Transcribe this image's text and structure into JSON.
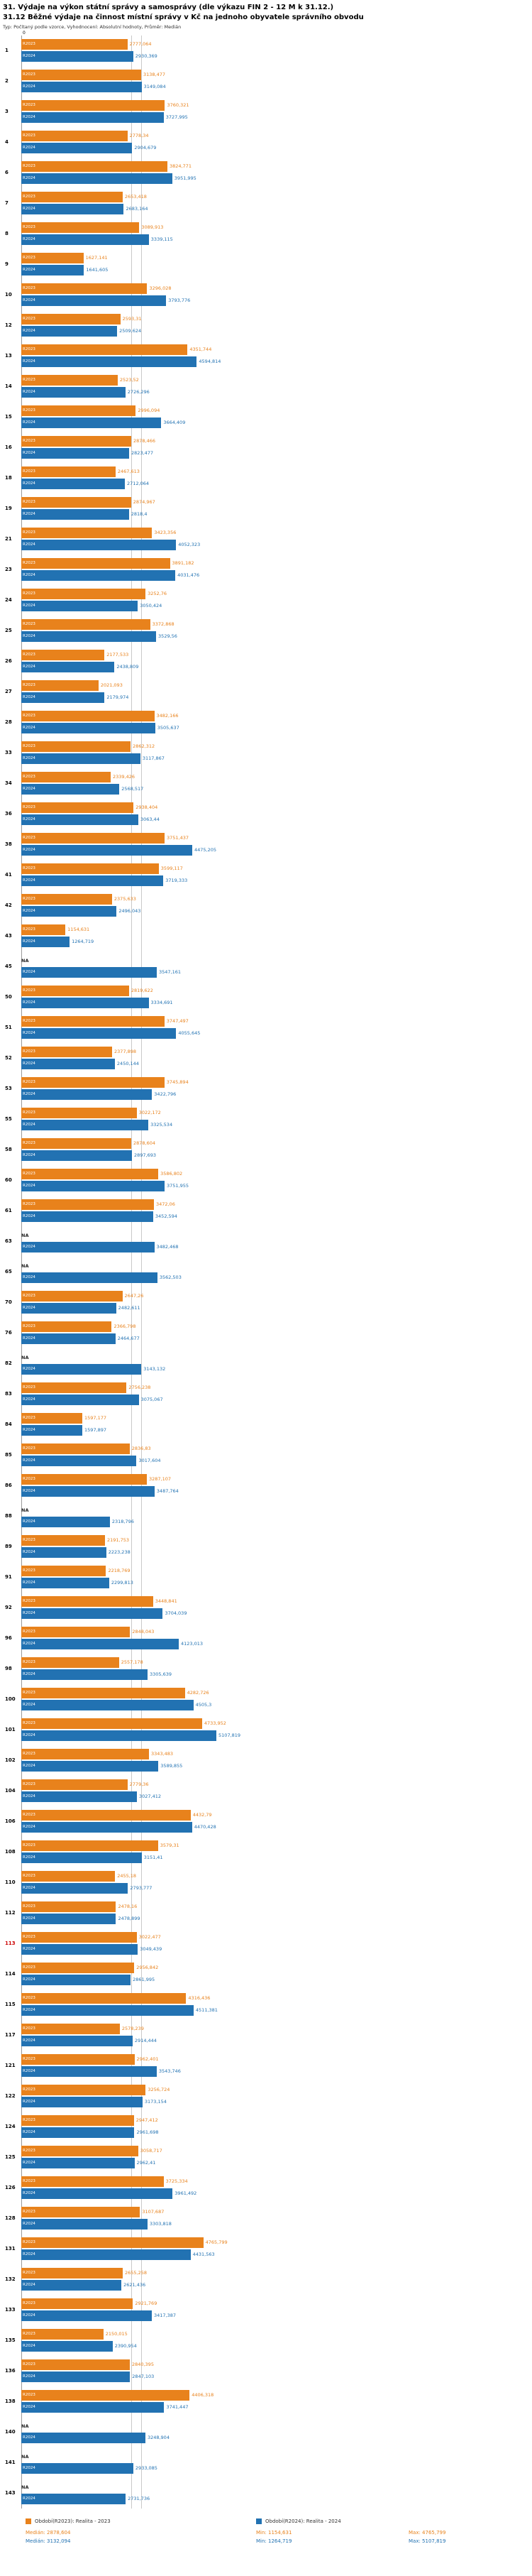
{
  "header": {
    "title": "31. Výdaje na výkon státní správy a samosprávy (dle výkazu FIN 2 - 12 M k 31.12.)",
    "subtitle": "31.12 Běžné výdaje na činnost místní správy v Kč na jednoho obyvatele správního obvodu",
    "meta": "Typ: Počítaný podle vzorce, Vyhodnocení: Absolutní hodnoty, Průměr: Medián",
    "axis_zero": "0"
  },
  "series": {
    "s2023": {
      "label": "R2023",
      "color": "#e8821c",
      "legend": "Období(R2023): Realita - 2023"
    },
    "s2024": {
      "label": "R2024",
      "color": "#2272b2",
      "legend": "Období(R2024): Realita - 2024"
    }
  },
  "na_label": "NA",
  "highlight_row": "113",
  "colors": {
    "s2023": "#e8821c",
    "s2024": "#2272b2",
    "highlight": "#cc0000",
    "gridline": "#c9c9c9"
  },
  "footer": {
    "median_2023": "Medián: 2878,604",
    "median_2024": "Medián: 3132,094",
    "min_2023": "Min: 1154,631",
    "min_2024": "Min: 1264,719",
    "max_2023": "Max: 4765,799",
    "max_2024": "Max: 5107,819"
  },
  "rows": [
    {
      "id": "1",
      "r2023": "2777,064",
      "r2024": "2930,369"
    },
    {
      "id": "2",
      "r2023": "3138,477",
      "r2024": "3149,084"
    },
    {
      "id": "3",
      "r2023": "3760,321",
      "r2024": "3727,995"
    },
    {
      "id": "4",
      "r2023": "2778,34",
      "r2024": "2904,679"
    },
    {
      "id": "6",
      "r2023": "3824,771",
      "r2024": "3951,995"
    },
    {
      "id": "7",
      "r2023": "2653,418",
      "r2024": "2683,164"
    },
    {
      "id": "8",
      "r2023": "3089,913",
      "r2024": "3339,115"
    },
    {
      "id": "9",
      "r2023": "1627,141",
      "r2024": "1641,605"
    },
    {
      "id": "10",
      "r2023": "3296,028",
      "r2024": "3793,776"
    },
    {
      "id": "12",
      "r2023": "2593,31",
      "r2024": "2509,624"
    },
    {
      "id": "13",
      "r2023": "4351,744",
      "r2024": "4594,814"
    },
    {
      "id": "14",
      "r2023": "2523,52",
      "r2024": "2726,296"
    },
    {
      "id": "15",
      "r2023": "2996,094",
      "r2024": "3664,409"
    },
    {
      "id": "16",
      "r2023": "2878,466",
      "r2024": "2823,477"
    },
    {
      "id": "18",
      "r2023": "2467,613",
      "r2024": "2712,064"
    },
    {
      "id": "19",
      "r2023": "2874,967",
      "r2024": "2818,4"
    },
    {
      "id": "21",
      "r2023": "3423,356",
      "r2024": "4052,323"
    },
    {
      "id": "23",
      "r2023": "3891,182",
      "r2024": "4031,476"
    },
    {
      "id": "24",
      "r2023": "3252,76",
      "r2024": "3050,424"
    },
    {
      "id": "25",
      "r2023": "3372,868",
      "r2024": "3529,56"
    },
    {
      "id": "26",
      "r2023": "2177,533",
      "r2024": "2438,809"
    },
    {
      "id": "27",
      "r2023": "2021,093",
      "r2024": "2179,974"
    },
    {
      "id": "28",
      "r2023": "3482,166",
      "r2024": "3505,637"
    },
    {
      "id": "33",
      "r2023": "2862,312",
      "r2024": "3117,867"
    },
    {
      "id": "34",
      "r2023": "2339,426",
      "r2024": "2568,517"
    },
    {
      "id": "36",
      "r2023": "2938,404",
      "r2024": "3063,44"
    },
    {
      "id": "38",
      "r2023": "3751,437",
      "r2024": "4475,205"
    },
    {
      "id": "41",
      "r2023": "3599,117",
      "r2024": "3719,333"
    },
    {
      "id": "42",
      "r2023": "2375,633",
      "r2024": "2496,043"
    },
    {
      "id": "43",
      "r2023": "1154,631",
      "r2024": "1264,719"
    },
    {
      "id": "45",
      "r2023": null,
      "r2024": "3547,161"
    },
    {
      "id": "50",
      "r2023": "2819,622",
      "r2024": "3334,691"
    },
    {
      "id": "51",
      "r2023": "3747,497",
      "r2024": "4055,645"
    },
    {
      "id": "52",
      "r2023": "2377,898",
      "r2024": "2450,144"
    },
    {
      "id": "53",
      "r2023": "3745,894",
      "r2024": "3422,796"
    },
    {
      "id": "55",
      "r2023": "3022,172",
      "r2024": "3325,534"
    },
    {
      "id": "58",
      "r2023": "2878,604",
      "r2024": "2897,693"
    },
    {
      "id": "60",
      "r2023": "3586,802",
      "r2024": "3751,955"
    },
    {
      "id": "61",
      "r2023": "3472,06",
      "r2024": "3452,594"
    },
    {
      "id": "63",
      "r2023": null,
      "r2024": "3482,468"
    },
    {
      "id": "65",
      "r2023": null,
      "r2024": "3562,503"
    },
    {
      "id": "70",
      "r2023": "2647,26",
      "r2024": "2482,611"
    },
    {
      "id": "76",
      "r2023": "2366,798",
      "r2024": "2464,677"
    },
    {
      "id": "82",
      "r2023": null,
      "r2024": "3143,132"
    },
    {
      "id": "83",
      "r2023": "2756,238",
      "r2024": "3075,067"
    },
    {
      "id": "84",
      "r2023": "1597,177",
      "r2024": "1597,897"
    },
    {
      "id": "85",
      "r2023": "2836,83",
      "r2024": "3017,604"
    },
    {
      "id": "86",
      "r2023": "3287,107",
      "r2024": "3487,764"
    },
    {
      "id": "88",
      "r2023": null,
      "r2024": "2318,796"
    },
    {
      "id": "89",
      "r2023": "2191,753",
      "r2024": "2223,238"
    },
    {
      "id": "91",
      "r2023": "2218,769",
      "r2024": "2299,813"
    },
    {
      "id": "92",
      "r2023": "3448,841",
      "r2024": "3704,039"
    },
    {
      "id": "96",
      "r2023": "2848,043",
      "r2024": "4123,013"
    },
    {
      "id": "98",
      "r2023": "2557,178",
      "r2024": "3305,639"
    },
    {
      "id": "100",
      "r2023": "4282,726",
      "r2024": "4505,3"
    },
    {
      "id": "101",
      "r2023": "4733,952",
      "r2024": "5107,819"
    },
    {
      "id": "102",
      "r2023": "3343,483",
      "r2024": "3589,855"
    },
    {
      "id": "104",
      "r2023": "2779,36",
      "r2024": "3027,412"
    },
    {
      "id": "106",
      "r2023": "4432,79",
      "r2024": "4470,428"
    },
    {
      "id": "108",
      "r2023": "3579,31",
      "r2024": "3151,41"
    },
    {
      "id": "110",
      "r2023": "2455,18",
      "r2024": "2793,777"
    },
    {
      "id": "112",
      "r2023": "2478,16",
      "r2024": "2478,899"
    },
    {
      "id": "113",
      "r2023": "3022,477",
      "r2024": "3049,439"
    },
    {
      "id": "114",
      "r2023": "2956,842",
      "r2024": "2861,995"
    },
    {
      "id": "115",
      "r2023": "4316,436",
      "r2024": "4511,381"
    },
    {
      "id": "117",
      "r2023": "2578,239",
      "r2024": "2914,444"
    },
    {
      "id": "121",
      "r2023": "2962,401",
      "r2024": "3543,746"
    },
    {
      "id": "122",
      "r2023": "3256,724",
      "r2024": "3173,154"
    },
    {
      "id": "124",
      "r2023": "2947,412",
      "r2024": "2961,698"
    },
    {
      "id": "125",
      "r2023": "3058,717",
      "r2024": "2962,41"
    },
    {
      "id": "126",
      "r2023": "3725,334",
      "r2024": "3961,492"
    },
    {
      "id": "128",
      "r2023": "3107,687",
      "r2024": "3303,818"
    },
    {
      "id": "131",
      "r2023": "4765,799",
      "r2024": "4431,563"
    },
    {
      "id": "132",
      "r2023": "2655,258",
      "r2024": "2621,436"
    },
    {
      "id": "133",
      "r2023": "2921,769",
      "r2024": "3417,387"
    },
    {
      "id": "135",
      "r2023": "2150,015",
      "r2024": "2390,954"
    },
    {
      "id": "136",
      "r2023": "2840,395",
      "r2024": "2847,103"
    },
    {
      "id": "138",
      "r2023": "4406,318",
      "r2024": "3741,447"
    },
    {
      "id": "140",
      "r2023": null,
      "r2024": "3248,904"
    },
    {
      "id": "141",
      "r2023": null,
      "r2024": "2933,085"
    },
    {
      "id": "143",
      "r2023": null,
      "r2024": "2731,736"
    }
  ],
  "chart_data": {
    "type": "bar",
    "orientation": "horizontal",
    "title": "31.12 Běžné výdaje na činnost místní správy v Kč na jednoho obyvatele správního obvodu",
    "xlim": [
      0,
      5200
    ],
    "grid": "median-lines-only",
    "legend_position": "bottom",
    "median_lines": [
      2878.604,
      3132.094
    ],
    "categories": [
      "1",
      "2",
      "3",
      "4",
      "6",
      "7",
      "8",
      "9",
      "10",
      "12",
      "13",
      "14",
      "15",
      "16",
      "18",
      "19",
      "21",
      "23",
      "24",
      "25",
      "26",
      "27",
      "28",
      "33",
      "34",
      "36",
      "38",
      "41",
      "42",
      "43",
      "45",
      "50",
      "51",
      "52",
      "53",
      "55",
      "58",
      "60",
      "61",
      "63",
      "65",
      "70",
      "76",
      "82",
      "83",
      "84",
      "85",
      "86",
      "88",
      "89",
      "91",
      "92",
      "96",
      "98",
      "100",
      "101",
      "102",
      "104",
      "106",
      "108",
      "110",
      "112",
      "113",
      "114",
      "115",
      "117",
      "121",
      "122",
      "124",
      "125",
      "126",
      "128",
      "131",
      "132",
      "133",
      "135",
      "136",
      "138",
      "140",
      "141",
      "143"
    ],
    "series": [
      {
        "name": "Realita - 2023",
        "color": "#e8821c",
        "median": 2878.604,
        "min": 1154.631,
        "max": 4765.799,
        "values": [
          2777.064,
          3138.477,
          3760.321,
          2778.34,
          3824.771,
          2653.418,
          3089.913,
          1627.141,
          3296.028,
          2593.31,
          4351.744,
          2523.52,
          2996.094,
          2878.466,
          2467.613,
          2874.967,
          3423.356,
          3891.182,
          3252.76,
          3372.868,
          2177.533,
          2021.093,
          3482.166,
          2862.312,
          2339.426,
          2938.404,
          3751.437,
          3599.117,
          2375.633,
          1154.631,
          null,
          2819.622,
          3747.497,
          2377.898,
          3745.894,
          3022.172,
          2878.604,
          3586.802,
          3472.06,
          null,
          null,
          2647.26,
          2366.798,
          null,
          2756.238,
          1597.177,
          2836.83,
          3287.107,
          null,
          2191.753,
          2218.769,
          3448.841,
          2848.043,
          2557.178,
          4282.726,
          4733.952,
          3343.483,
          2779.36,
          4432.79,
          3579.31,
          2455.18,
          2478.16,
          3022.477,
          2956.842,
          4316.436,
          2578.239,
          2962.401,
          3256.724,
          2947.412,
          3058.717,
          3725.334,
          3107.687,
          4765.799,
          2655.258,
          2921.769,
          2150.015,
          2840.395,
          4406.318,
          null,
          null,
          null
        ]
      },
      {
        "name": "Realita - 2024",
        "color": "#2272b2",
        "median": 3132.094,
        "min": 1264.719,
        "max": 5107.819,
        "values": [
          2930.369,
          3149.084,
          3727.995,
          2904.679,
          3951.995,
          2683.164,
          3339.115,
          1641.605,
          3793.776,
          2509.624,
          4594.814,
          2726.296,
          3664.409,
          2823.477,
          2712.064,
          2818.4,
          4052.323,
          4031.476,
          3050.424,
          3529.56,
          2438.809,
          2179.974,
          3505.637,
          3117.867,
          2568.517,
          3063.44,
          4475.205,
          3719.333,
          2496.043,
          1264.719,
          3547.161,
          3334.691,
          4055.645,
          2450.144,
          3422.796,
          3325.534,
          2897.693,
          3751.955,
          3452.594,
          3482.468,
          3562.503,
          2482.611,
          2464.677,
          3143.132,
          3075.067,
          1597.897,
          3017.604,
          3487.764,
          2318.796,
          2223.238,
          2299.813,
          3704.039,
          4123.013,
          3305.639,
          4505.3,
          5107.819,
          3589.855,
          3027.412,
          4470.428,
          3151.41,
          2793.777,
          2478.899,
          3049.439,
          2861.995,
          4511.381,
          2914.444,
          3543.746,
          3173.154,
          2961.698,
          2962.41,
          3961.492,
          3303.818,
          4431.563,
          2621.436,
          3417.387,
          2390.954,
          2847.103,
          3741.447,
          3248.904,
          2933.085,
          2731.736
        ]
      }
    ]
  }
}
